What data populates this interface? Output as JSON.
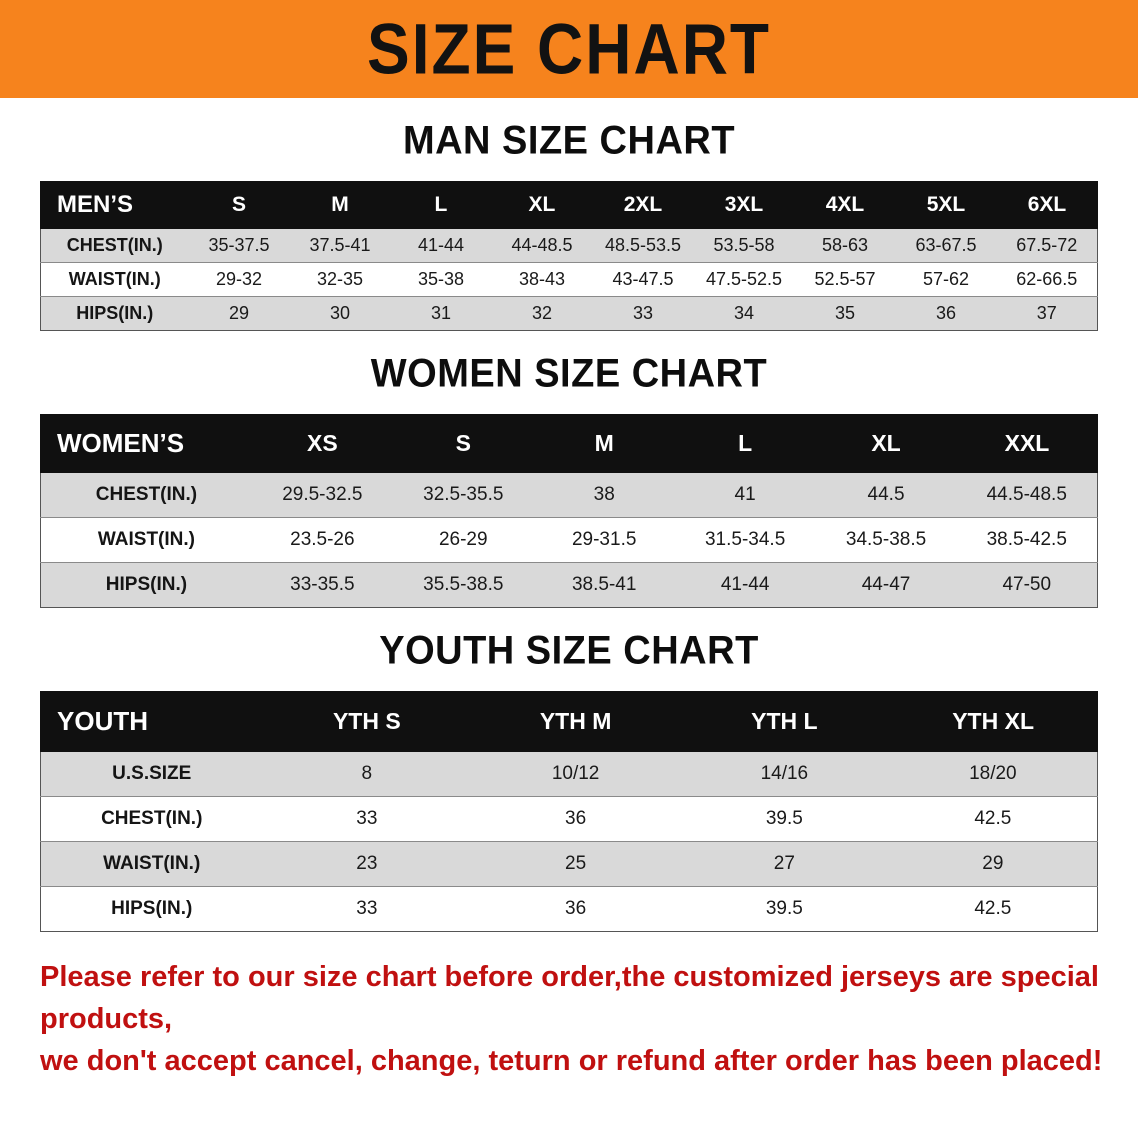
{
  "colors": {
    "banner_bg": "#f6831d",
    "header_bg": "#101010",
    "row_alt_bg": "#d9d9d9",
    "notice_red": "#c01010"
  },
  "banner": {
    "title": "SIZE CHART"
  },
  "sections": [
    {
      "id": "men",
      "heading": "MAN SIZE CHART",
      "table": {
        "header": [
          "MEN’S",
          "S",
          "M",
          "L",
          "XL",
          "2XL",
          "3XL",
          "4XL",
          "5XL",
          "6XL"
        ],
        "rows": [
          {
            "label": "CHEST(IN.)",
            "values": [
              "35-37.5",
              "37.5-41",
              "41-44",
              "44-48.5",
              "48.5-53.5",
              "53.5-58",
              "58-63",
              "63-67.5",
              "67.5-72"
            ]
          },
          {
            "label": "WAIST(IN.)",
            "values": [
              "29-32",
              "32-35",
              "35-38",
              "38-43",
              "43-47.5",
              "47.5-52.5",
              "52.5-57",
              "57-62",
              "62-66.5"
            ]
          },
          {
            "label": "HIPS(IN.)",
            "values": [
              "29",
              "30",
              "31",
              "32",
              "33",
              "34",
              "35",
              "36",
              "37"
            ]
          }
        ]
      }
    },
    {
      "id": "women",
      "heading": "WOMEN SIZE CHART",
      "table": {
        "header": [
          "WOMEN’S",
          "XS",
          "S",
          "M",
          "L",
          "XL",
          "XXL"
        ],
        "rows": [
          {
            "label": "CHEST(IN.)",
            "values": [
              "29.5-32.5",
              "32.5-35.5",
              "38",
              "41",
              "44.5",
              "44.5-48.5"
            ]
          },
          {
            "label": "WAIST(IN.)",
            "values": [
              "23.5-26",
              "26-29",
              "29-31.5",
              "31.5-34.5",
              "34.5-38.5",
              "38.5-42.5"
            ]
          },
          {
            "label": "HIPS(IN.)",
            "values": [
              "33-35.5",
              "35.5-38.5",
              "38.5-41",
              "41-44",
              "44-47",
              "47-50"
            ]
          }
        ]
      }
    },
    {
      "id": "youth",
      "heading": "YOUTH SIZE CHART",
      "table": {
        "header": [
          "YOUTH",
          "YTH S",
          "YTH M",
          "YTH L",
          "YTH XL"
        ],
        "rows": [
          {
            "label": "U.S.SIZE",
            "values": [
              "8",
              "10/12",
              "14/16",
              "18/20"
            ]
          },
          {
            "label": "CHEST(IN.)",
            "values": [
              "33",
              "36",
              "39.5",
              "42.5"
            ]
          },
          {
            "label": "WAIST(IN.)",
            "values": [
              "23",
              "25",
              "27",
              "29"
            ]
          },
          {
            "label": "HIPS(IN.)",
            "values": [
              "33",
              "36",
              "39.5",
              "42.5"
            ]
          }
        ]
      }
    }
  ],
  "footer": {
    "line1": "Please refer to our size chart before order,the customized jerseys are special products,",
    "line2": "we don't accept cancel, change, teturn or refund after order has been placed!"
  }
}
